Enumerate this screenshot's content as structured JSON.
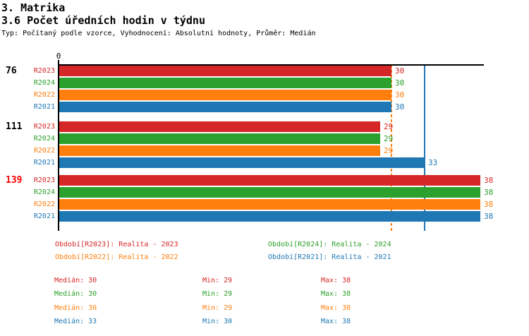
{
  "header": {
    "title_line1": "3. Matrika",
    "title_line2": "3.6 Počet úředních hodin v týdnu",
    "subtitle": "Typ: Počítaný podle vzorce, Vyhodnocení: Absolutní hodnoty, Průměr: Medián"
  },
  "chart_data": {
    "type": "bar",
    "orientation": "horizontal",
    "axis": {
      "origin_label": "0",
      "min": 0,
      "max_visible": 38
    },
    "grid": "off",
    "series_order": [
      "R2023",
      "R2024",
      "R2022",
      "R2021"
    ],
    "series_colors": {
      "R2023": "#d62728",
      "R2024": "#2ca02c",
      "R2022": "#ff7f0e",
      "R2021": "#1f77b4"
    },
    "groups": [
      {
        "label": "76",
        "label_color": "#000000",
        "values": [
          30,
          30,
          30,
          30
        ]
      },
      {
        "label": "111",
        "label_color": "#000000",
        "values": [
          29,
          29,
          29,
          33
        ]
      },
      {
        "label": "139",
        "label_color": "#ff0000",
        "values": [
          38,
          38,
          38,
          38
        ]
      }
    ],
    "reference_lines": [
      {
        "value": 30,
        "color": "#ff7f0e",
        "style": "dashed"
      },
      {
        "value": 33,
        "color": "#1f77b4",
        "style": "solid"
      }
    ]
  },
  "legend": {
    "items": [
      {
        "series": "R2023",
        "label": "Období[R2023]: Realita - 2023",
        "color": "#d62728"
      },
      {
        "series": "R2024",
        "label": "Období[R2024]: Realita - 2024",
        "color": "#2ca02c"
      },
      {
        "series": "R2022",
        "label": "Období[R2022]: Realita - 2022",
        "color": "#ff7f0e"
      },
      {
        "series": "R2021",
        "label": "Období[R2021]: Realita - 2021",
        "color": "#1f77b4"
      }
    ]
  },
  "stats": {
    "labels": {
      "median": "Medián",
      "min": "Min",
      "max": "Max"
    },
    "rows": [
      {
        "series": "R2023",
        "color": "#d62728",
        "median": "30",
        "min": "29",
        "max": "38"
      },
      {
        "series": "R2024",
        "color": "#2ca02c",
        "median": "30",
        "min": "29",
        "max": "38"
      },
      {
        "series": "R2022",
        "color": "#ff7f0e",
        "median": "30",
        "min": "29",
        "max": "38"
      },
      {
        "series": "R2021",
        "color": "#1f77b4",
        "median": "33",
        "min": "30",
        "max": "38"
      }
    ]
  }
}
